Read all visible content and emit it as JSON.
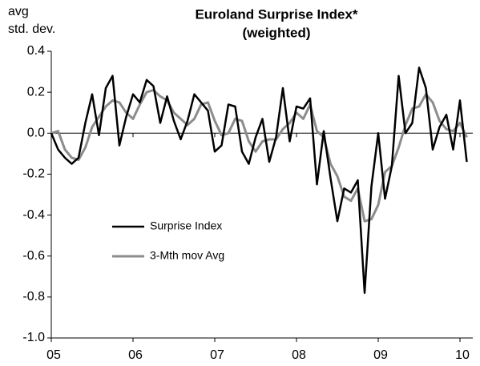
{
  "chart_data": {
    "type": "line",
    "title": "Euroland Surprise Index*",
    "subtitle": "(weighted)",
    "y_label": [
      "avg",
      "std. dev."
    ],
    "categories": [
      "05",
      null,
      null,
      null,
      null,
      null,
      null,
      null,
      null,
      null,
      null,
      null,
      "06",
      null,
      null,
      null,
      null,
      null,
      null,
      null,
      null,
      null,
      null,
      null,
      "07",
      null,
      null,
      null,
      null,
      null,
      null,
      null,
      null,
      null,
      null,
      null,
      "08",
      null,
      null,
      null,
      null,
      null,
      null,
      null,
      null,
      null,
      null,
      null,
      "09",
      null,
      null,
      null,
      null,
      null,
      null,
      null,
      null,
      null,
      null,
      null,
      "10",
      null
    ],
    "series": [
      {
        "name": "Surprise Index",
        "color": "#000000",
        "values": [
          0.0,
          -0.08,
          -0.12,
          -0.15,
          -0.12,
          0.05,
          0.19,
          -0.01,
          0.22,
          0.28,
          -0.06,
          0.08,
          0.19,
          0.15,
          0.26,
          0.23,
          0.05,
          0.18,
          0.06,
          -0.03,
          0.06,
          0.19,
          0.15,
          0.11,
          -0.09,
          -0.06,
          0.14,
          0.13,
          -0.09,
          -0.15,
          -0.02,
          0.07,
          -0.14,
          -0.02,
          0.22,
          -0.04,
          0.13,
          0.12,
          0.17,
          -0.25,
          0.01,
          -0.22,
          -0.43,
          -0.27,
          -0.29,
          -0.23,
          -0.78,
          -0.26,
          0.0,
          -0.32,
          -0.16,
          0.28,
          0.0,
          0.05,
          0.32,
          0.22,
          -0.08,
          0.03,
          0.09,
          -0.08,
          0.16,
          -0.14
        ]
      },
      {
        "name": "3-Mth mov Avg",
        "color": "#8c8c8c",
        "values": [
          0.0,
          0.01,
          -0.08,
          -0.12,
          -0.13,
          -0.07,
          0.03,
          0.08,
          0.13,
          0.16,
          0.15,
          0.1,
          0.07,
          0.14,
          0.2,
          0.21,
          0.18,
          0.16,
          0.1,
          0.07,
          0.04,
          0.07,
          0.14,
          0.15,
          0.06,
          -0.01,
          0.0,
          0.07,
          0.06,
          -0.04,
          -0.09,
          -0.04,
          -0.03,
          -0.03,
          0.02,
          0.05,
          0.1,
          0.07,
          0.14,
          0.01,
          -0.02,
          -0.15,
          -0.21,
          -0.31,
          -0.33,
          -0.27,
          -0.43,
          -0.42,
          -0.35,
          -0.19,
          -0.16,
          -0.07,
          0.04,
          0.12,
          0.13,
          0.19,
          0.15,
          0.06,
          0.02,
          0.01,
          0.05,
          -0.02
        ]
      }
    ],
    "ylim": [
      -1.0,
      0.4
    ],
    "yticks": [
      0.4,
      0.2,
      {
        "value": 0.0,
        "label": "0.0"
      },
      -0.2,
      -0.4,
      -0.6,
      -0.8,
      {
        "value": -1.0,
        "label": "-1.0"
      }
    ],
    "grid": false,
    "legend": "center-left"
  }
}
